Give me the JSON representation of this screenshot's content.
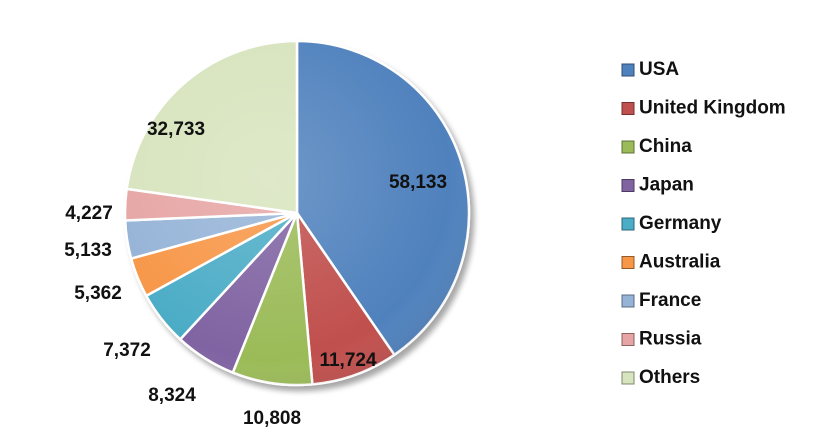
{
  "chart_data": {
    "type": "pie",
    "title": "",
    "legend_position": "right",
    "categories": [
      "USA",
      "United Kingdom",
      "China",
      "Japan",
      "Germany",
      "Australia",
      "France",
      "Russia",
      "Others"
    ],
    "values": [
      58133,
      11724,
      10808,
      8324,
      7372,
      5362,
      5133,
      4227,
      32733
    ],
    "labels": [
      "58,133",
      "11,724",
      "10,808",
      "8,324",
      "7,372",
      "5,362",
      "5,133",
      "4,227",
      "32,733"
    ],
    "colors": [
      "#4F81BD",
      "#C0504D",
      "#9BBB59",
      "#8064A2",
      "#4BACC6",
      "#F79646",
      "#95B3D7",
      "#E6A5A4",
      "#D7E4BD"
    ],
    "start_angle_deg": 0,
    "direction": "clockwise"
  }
}
